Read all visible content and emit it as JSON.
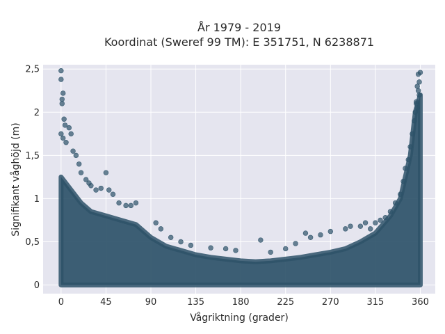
{
  "chart_data": {
    "type": "scatter",
    "title": "År 1979 - 2019",
    "subtitle": "Koordinat (Sweref 99 TM): E 351751, N 6238871",
    "xlabel": "Vågriktning (grader)",
    "ylabel": "Signifikant våghöjd (m)",
    "xlim": [
      -18,
      375
    ],
    "ylim": [
      -0.1,
      2.55
    ],
    "x_ticks": [
      0,
      45,
      90,
      135,
      180,
      225,
      270,
      315,
      360
    ],
    "x_tick_labels": [
      "0",
      "45",
      "90",
      "135",
      "180",
      "225",
      "270",
      "315",
      "360"
    ],
    "y_ticks": [
      0,
      0.5,
      1,
      1.5,
      2,
      2.5
    ],
    "y_tick_labels": [
      "0",
      "0,5",
      "1",
      "1,5",
      "2",
      "2,5"
    ],
    "grid": true,
    "marker_color": "#2e5269",
    "plot_background": "#e5e5ef",
    "dense_band_upper_envelope": {
      "x": [
        0,
        10,
        20,
        30,
        45,
        60,
        75,
        90,
        105,
        120,
        135,
        150,
        165,
        180,
        195,
        210,
        225,
        240,
        255,
        270,
        285,
        300,
        315,
        330,
        340,
        350,
        355,
        360
      ],
      "y": [
        1.25,
        1.1,
        0.95,
        0.85,
        0.8,
        0.75,
        0.7,
        0.55,
        0.45,
        0.4,
        0.35,
        0.32,
        0.3,
        0.28,
        0.27,
        0.28,
        0.3,
        0.32,
        0.35,
        0.38,
        0.42,
        0.5,
        0.6,
        0.8,
        1.0,
        1.5,
        2.0,
        2.2
      ]
    },
    "outliers": {
      "x": [
        0,
        0,
        1,
        2,
        1,
        3,
        4,
        0,
        2,
        5,
        8,
        10,
        12,
        15,
        18,
        20,
        25,
        28,
        30,
        35,
        40,
        45,
        48,
        52,
        58,
        65,
        70,
        75,
        95,
        100,
        110,
        120,
        130,
        150,
        165,
        175,
        200,
        210,
        225,
        235,
        245,
        250,
        260,
        270,
        285,
        290,
        300,
        305,
        310,
        315,
        320,
        325,
        330,
        335,
        340,
        343,
        345,
        348,
        350,
        352,
        354,
        355,
        356,
        357,
        358,
        359,
        360,
        358,
        357,
        356,
        359
      ],
      "y": [
        2.48,
        2.38,
        2.15,
        2.22,
        2.1,
        1.92,
        1.85,
        1.75,
        1.7,
        1.65,
        1.82,
        1.75,
        1.55,
        1.5,
        1.4,
        1.3,
        1.22,
        1.18,
        1.15,
        1.1,
        1.12,
        1.3,
        1.1,
        1.05,
        0.95,
        0.92,
        0.92,
        0.95,
        0.72,
        0.65,
        0.55,
        0.5,
        0.46,
        0.43,
        0.42,
        0.4,
        0.52,
        0.38,
        0.42,
        0.48,
        0.6,
        0.55,
        0.58,
        0.62,
        0.65,
        0.68,
        0.68,
        0.72,
        0.65,
        0.72,
        0.75,
        0.78,
        0.85,
        0.95,
        1.05,
        1.2,
        1.35,
        1.45,
        1.6,
        1.75,
        1.9,
        2.0,
        2.1,
        2.05,
        2.25,
        2.35,
        2.46,
        2.44,
        2.3,
        2.12,
        2.2
      ]
    }
  }
}
